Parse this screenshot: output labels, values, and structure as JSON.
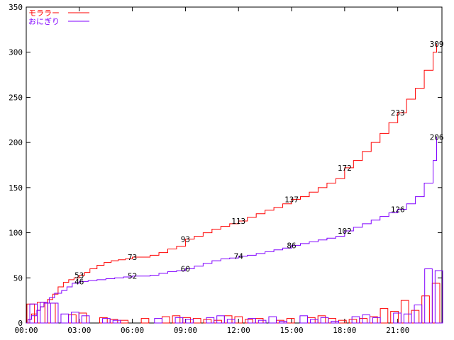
{
  "chart_data": {
    "type": "line",
    "title": "",
    "xlabel": "",
    "ylabel": "",
    "xlim": [
      0,
      23.5
    ],
    "ylim": [
      0,
      350
    ],
    "y_ticks": [
      0,
      50,
      100,
      150,
      200,
      250,
      300,
      350
    ],
    "x_ticks": [
      {
        "x": 0,
        "label": "00:00"
      },
      {
        "x": 3,
        "label": "03:00"
      },
      {
        "x": 6,
        "label": "06:00"
      },
      {
        "x": 9,
        "label": "09:00"
      },
      {
        "x": 12,
        "label": "12:00"
      },
      {
        "x": 15,
        "label": "15:00"
      },
      {
        "x": 18,
        "label": "18:00"
      },
      {
        "x": 21,
        "label": "21:00"
      }
    ],
    "grid": false,
    "legend_position": "top-left",
    "series": [
      {
        "name": "モララー",
        "color": "#ff0000",
        "cumulative": [
          [
            0,
            0
          ],
          [
            0.1,
            4
          ],
          [
            0.3,
            10
          ],
          [
            0.6,
            14
          ],
          [
            0.8,
            18
          ],
          [
            1.0,
            22
          ],
          [
            1.2,
            26
          ],
          [
            1.5,
            32
          ],
          [
            1.8,
            40
          ],
          [
            2.1,
            45
          ],
          [
            2.4,
            48
          ],
          [
            2.7,
            50
          ],
          [
            3.0,
            53
          ],
          [
            3.3,
            56
          ],
          [
            3.6,
            60
          ],
          [
            4.0,
            64
          ],
          [
            4.4,
            67
          ],
          [
            4.8,
            69
          ],
          [
            5.2,
            70
          ],
          [
            5.6,
            71
          ],
          [
            6.0,
            73
          ],
          [
            6.5,
            73
          ],
          [
            7.0,
            75
          ],
          [
            7.5,
            78
          ],
          [
            8.0,
            82
          ],
          [
            8.5,
            85
          ],
          [
            9.0,
            93
          ],
          [
            9.5,
            96
          ],
          [
            10.0,
            100
          ],
          [
            10.5,
            104
          ],
          [
            11.0,
            107
          ],
          [
            11.5,
            110
          ],
          [
            12.0,
            113
          ],
          [
            12.5,
            117
          ],
          [
            13.0,
            121
          ],
          [
            13.5,
            125
          ],
          [
            14.0,
            128
          ],
          [
            14.5,
            132
          ],
          [
            15.0,
            137
          ],
          [
            15.5,
            140
          ],
          [
            16.0,
            145
          ],
          [
            16.5,
            150
          ],
          [
            17.0,
            155
          ],
          [
            17.5,
            160
          ],
          [
            18.0,
            172
          ],
          [
            18.5,
            180
          ],
          [
            19.0,
            190
          ],
          [
            19.5,
            200
          ],
          [
            20.0,
            210
          ],
          [
            20.5,
            222
          ],
          [
            21.0,
            233
          ],
          [
            21.5,
            248
          ],
          [
            22.0,
            260
          ],
          [
            22.5,
            280
          ],
          [
            23.0,
            300
          ],
          [
            23.2,
            309
          ]
        ],
        "hourly_bars": [
          21,
          23,
          22,
          0,
          9,
          11,
          0,
          6,
          4,
          3,
          0,
          5,
          0,
          7,
          8,
          6,
          5,
          4,
          3,
          8,
          7,
          4,
          5,
          0,
          3,
          5,
          0,
          6,
          8,
          5,
          3,
          4,
          5,
          7,
          16,
          13,
          25,
          14,
          30,
          44
        ],
        "point_labels": [
          {
            "x": 3,
            "y": 53,
            "label": "53"
          },
          {
            "x": 6,
            "y": 73,
            "label": "73"
          },
          {
            "x": 9,
            "y": 93,
            "label": "93"
          },
          {
            "x": 12,
            "y": 113,
            "label": "113"
          },
          {
            "x": 15,
            "y": 137,
            "label": "137"
          },
          {
            "x": 18,
            "y": 172,
            "label": "172"
          },
          {
            "x": 21,
            "y": 233,
            "label": "233"
          },
          {
            "x": 23.2,
            "y": 309,
            "label": "309"
          }
        ]
      },
      {
        "name": "おにぎり",
        "color": "#8000ff",
        "cumulative": [
          [
            0,
            0
          ],
          [
            0.1,
            4
          ],
          [
            0.3,
            8
          ],
          [
            0.6,
            14
          ],
          [
            0.8,
            18
          ],
          [
            1.0,
            22
          ],
          [
            1.3,
            28
          ],
          [
            1.6,
            33
          ],
          [
            2.0,
            36
          ],
          [
            2.3,
            40
          ],
          [
            2.6,
            44
          ],
          [
            3.0,
            46
          ],
          [
            3.5,
            47
          ],
          [
            4.0,
            48
          ],
          [
            4.5,
            49
          ],
          [
            5.0,
            50
          ],
          [
            5.5,
            51
          ],
          [
            6.0,
            52
          ],
          [
            6.5,
            52
          ],
          [
            7.0,
            53
          ],
          [
            7.5,
            55
          ],
          [
            8.0,
            57
          ],
          [
            8.5,
            58
          ],
          [
            9.0,
            60
          ],
          [
            9.5,
            63
          ],
          [
            10.0,
            66
          ],
          [
            10.5,
            69
          ],
          [
            11.0,
            71
          ],
          [
            11.5,
            72
          ],
          [
            12.0,
            74
          ],
          [
            12.5,
            75
          ],
          [
            13.0,
            77
          ],
          [
            13.5,
            79
          ],
          [
            14.0,
            81
          ],
          [
            14.5,
            83
          ],
          [
            15.0,
            86
          ],
          [
            15.5,
            88
          ],
          [
            16.0,
            90
          ],
          [
            16.5,
            92
          ],
          [
            17.0,
            94
          ],
          [
            17.5,
            96
          ],
          [
            18.0,
            102
          ],
          [
            18.5,
            106
          ],
          [
            19.0,
            110
          ],
          [
            19.5,
            114
          ],
          [
            20.0,
            118
          ],
          [
            20.5,
            122
          ],
          [
            21.0,
            126
          ],
          [
            21.5,
            132
          ],
          [
            22.0,
            140
          ],
          [
            22.5,
            155
          ],
          [
            23.0,
            180
          ],
          [
            23.2,
            206
          ]
        ],
        "hourly_bars": [
          21,
          23,
          22,
          10,
          12,
          8,
          0,
          5,
          3,
          0,
          0,
          0,
          5,
          0,
          6,
          4,
          0,
          6,
          8,
          4,
          0,
          5,
          3,
          7,
          2,
          0,
          8,
          4,
          6,
          2,
          0,
          7,
          9,
          6,
          0,
          11,
          10,
          20,
          60,
          58
        ],
        "point_labels": [
          {
            "x": 3,
            "y": 46,
            "label": "46"
          },
          {
            "x": 6,
            "y": 52,
            "label": "52"
          },
          {
            "x": 9,
            "y": 60,
            "label": "60"
          },
          {
            "x": 12,
            "y": 74,
            "label": "74"
          },
          {
            "x": 15,
            "y": 86,
            "label": "86"
          },
          {
            "x": 18,
            "y": 102,
            "label": "102"
          },
          {
            "x": 21,
            "y": 126,
            "label": "126"
          },
          {
            "x": 23.2,
            "y": 206,
            "label": "206"
          }
        ]
      }
    ]
  }
}
